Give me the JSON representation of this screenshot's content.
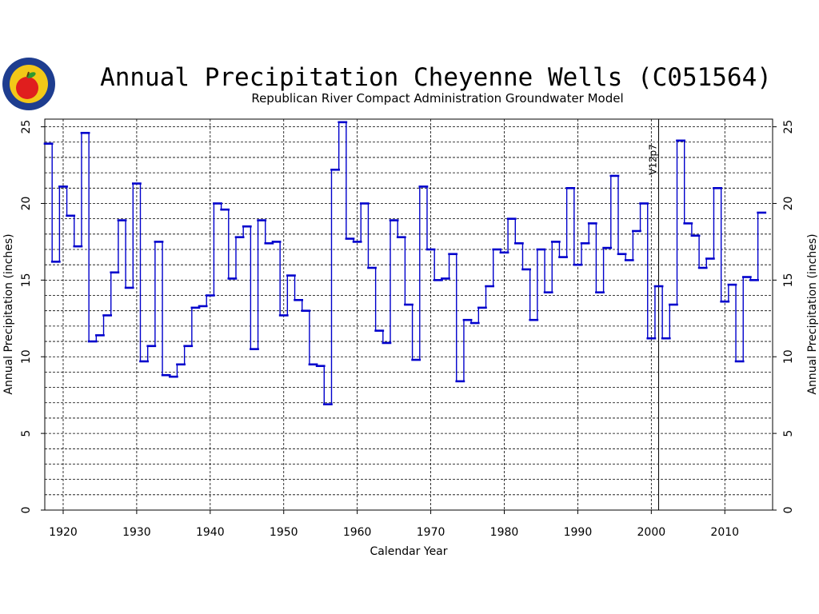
{
  "colors": {
    "series": "#0000cc",
    "logo_ring": "#1e3d8f",
    "logo_field": "#f2c818",
    "apple": "#e01e1e",
    "leaf": "#2e9a2e"
  },
  "chart_data": {
    "type": "line",
    "title": "Annual Precipitation Cheyenne Wells (C051564)",
    "subtitle": "Republican River Compact Administration Groundwater Model",
    "xlabel": "Calendar Year",
    "ylabel": "Annual Precipitation (inches)",
    "xlim": [
      1917.5,
      2016.5
    ],
    "ylim": [
      0,
      25.5
    ],
    "x_ticks": [
      1920,
      1930,
      1940,
      1950,
      1960,
      1970,
      1980,
      1990,
      2000,
      2010
    ],
    "y_ticks": [
      0,
      5,
      10,
      15,
      20,
      25
    ],
    "grid": true,
    "step": true,
    "marker": {
      "year": 2001,
      "label": "V12p7"
    },
    "series": [
      {
        "x": [
          1918,
          1919,
          1920,
          1921,
          1922,
          1923,
          1924,
          1925,
          1926,
          1927,
          1928,
          1929,
          1930,
          1931,
          1932,
          1933,
          1934,
          1935,
          1936,
          1937,
          1938,
          1939,
          1940,
          1941,
          1942,
          1943,
          1944,
          1945,
          1946,
          1947,
          1948,
          1949,
          1950,
          1951,
          1952,
          1953,
          1954,
          1955,
          1956,
          1957,
          1958,
          1959,
          1960,
          1961,
          1962,
          1963,
          1964,
          1965,
          1966,
          1967,
          1968,
          1969,
          1970,
          1971,
          1972,
          1973,
          1974,
          1975,
          1976,
          1977,
          1978,
          1979,
          1980,
          1981,
          1982,
          1983,
          1984,
          1985,
          1986,
          1987,
          1988,
          1989,
          1990,
          1991,
          1992,
          1993,
          1994,
          1995,
          1996,
          1997,
          1998,
          1999,
          2000,
          2001,
          2002,
          2003,
          2004,
          2005,
          2006,
          2007,
          2008,
          2009,
          2010,
          2011,
          2012,
          2013,
          2014,
          2015
        ],
        "values": [
          23.9,
          16.2,
          21.1,
          19.2,
          17.2,
          24.6,
          11.0,
          11.4,
          12.7,
          15.5,
          18.9,
          14.5,
          21.3,
          9.7,
          10.7,
          17.5,
          8.8,
          8.7,
          9.5,
          10.7,
          13.2,
          13.3,
          14.0,
          20.0,
          19.6,
          15.1,
          17.8,
          18.5,
          10.5,
          18.9,
          17.4,
          17.5,
          12.7,
          15.3,
          13.7,
          13.0,
          9.5,
          9.4,
          6.9,
          22.2,
          25.3,
          17.7,
          17.5,
          20.0,
          15.8,
          11.7,
          10.9,
          18.9,
          17.8,
          13.4,
          9.8,
          21.1,
          17.0,
          15.0,
          15.1,
          16.7,
          8.4,
          12.4,
          12.2,
          13.2,
          14.6,
          17.0,
          16.8,
          19.0,
          17.4,
          15.7,
          12.4,
          17.0,
          14.2,
          17.5,
          16.5,
          21.0,
          16.0,
          17.4,
          18.7,
          14.2,
          17.1,
          21.8,
          16.7,
          16.3,
          18.2,
          20.0,
          11.2,
          14.6,
          11.2,
          13.4,
          24.1,
          18.7,
          17.9,
          15.8,
          16.4,
          21.0,
          13.6,
          14.7,
          9.7,
          15.2,
          15.0,
          19.4
        ]
      }
    ]
  }
}
